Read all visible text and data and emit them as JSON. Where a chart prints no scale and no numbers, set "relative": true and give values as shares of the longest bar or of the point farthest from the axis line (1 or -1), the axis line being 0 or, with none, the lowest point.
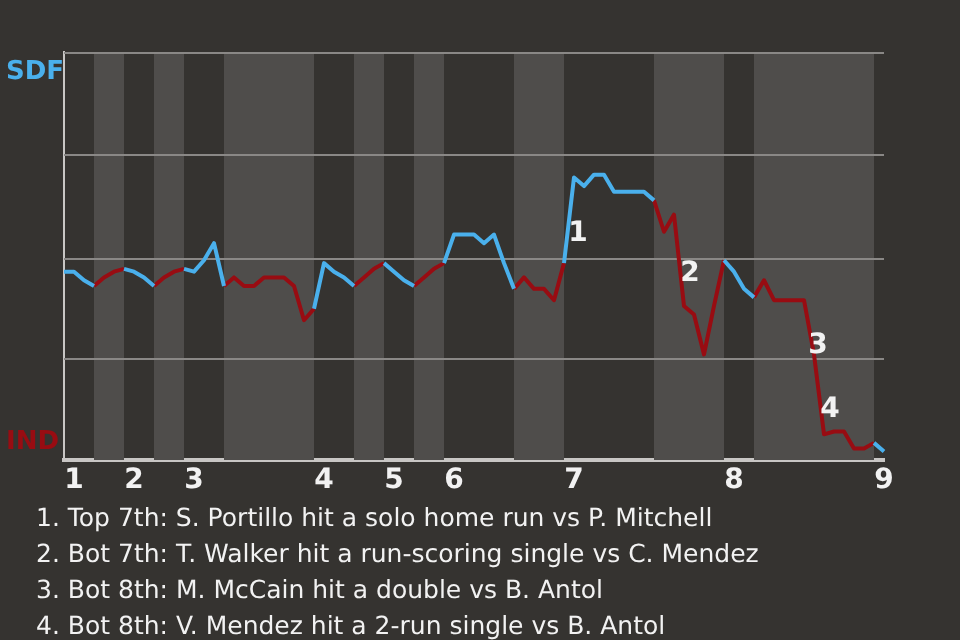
{
  "chart_data": {
    "type": "line",
    "relative": true,
    "categories": [
      null,
      "1",
      null,
      null,
      null,
      null,
      null,
      "2",
      null,
      null,
      null,
      null,
      null,
      "3",
      null,
      null,
      null,
      null,
      null,
      null,
      null,
      null,
      null,
      null,
      null,
      null,
      "4",
      null,
      null,
      null,
      null,
      null,
      null,
      "5",
      null,
      null,
      null,
      null,
      null,
      "6",
      null,
      null,
      null,
      null,
      null,
      null,
      null,
      null,
      null,
      null,
      null,
      "7",
      null,
      null,
      null,
      null,
      null,
      null,
      null,
      null,
      null,
      null,
      null,
      null,
      null,
      null,
      null,
      "8",
      null,
      null,
      null,
      null,
      null,
      null,
      null,
      null,
      null,
      null,
      null,
      null,
      null,
      null,
      "9"
    ],
    "series": [
      {
        "color": "#4ab0ec",
        "values": [
          0.66,
          0.66,
          0.63,
          0.61,
          null,
          null,
          0.67,
          0.66,
          0.64,
          0.61,
          null,
          null,
          0.67,
          0.66,
          0.7,
          0.76,
          0.61,
          null,
          null,
          null,
          null,
          null,
          null,
          null,
          null,
          0.53,
          0.69,
          0.66,
          0.64,
          0.61,
          null,
          null,
          0.69,
          0.66,
          0.63,
          0.61,
          null,
          null,
          0.69,
          0.79,
          0.79,
          0.79,
          0.76,
          0.79,
          0.69,
          0.6,
          null,
          null,
          null,
          null,
          0.69,
          0.99,
          0.96,
          1,
          1,
          0.94,
          0.94,
          0.94,
          0.94,
          0.91,
          null,
          null,
          null,
          null,
          null,
          null,
          0.7,
          0.66,
          0.6,
          0.57,
          null,
          null,
          null,
          null,
          null,
          null,
          null,
          null,
          null,
          null,
          null,
          0.06,
          0.03
        ]
      },
      {
        "color": "#980c12",
        "values": [
          null,
          null,
          null,
          0.61,
          0.64,
          0.66,
          0.67,
          null,
          null,
          0.61,
          0.64,
          0.66,
          0.67,
          null,
          null,
          null,
          0.61,
          0.64,
          0.61,
          0.61,
          0.64,
          0.64,
          0.64,
          0.61,
          0.49,
          0.53,
          null,
          null,
          null,
          0.61,
          0.64,
          0.67,
          0.69,
          null,
          null,
          0.61,
          0.64,
          0.67,
          0.69,
          null,
          null,
          null,
          null,
          null,
          null,
          0.6,
          0.64,
          0.6,
          0.6,
          0.56,
          0.69,
          null,
          null,
          null,
          null,
          null,
          null,
          null,
          null,
          0.91,
          0.8,
          0.86,
          0.54,
          0.51,
          0.37,
          0.54,
          0.7,
          null,
          null,
          0.57,
          0.63,
          0.56,
          0.56,
          0.56,
          0.56,
          0.37,
          0.09,
          0.1,
          0.1,
          0.04,
          0.04,
          0.06,
          null
        ]
      }
    ],
    "ref_lines": [
      {
        "axis": "y",
        "value": 0.36,
        "color": "#8a8886"
      },
      {
        "axis": "y",
        "value": 0.71,
        "color": "#8a8886"
      },
      {
        "axis": "y",
        "value": 1.07,
        "color": "#8a8886"
      },
      {
        "axis": "y",
        "value": 1.43,
        "color": "#8a8886"
      }
    ],
    "annotations": [
      "SDF",
      "IND",
      "1",
      "2",
      "3",
      "4",
      "1. Top 7th: S. Portillo hit a solo home run vs P. Mitchell",
      "2. Bot 7th: T. Walker hit a run-scoring single vs C. Mendez",
      "3. Bot 8th: M. McCain hit a double vs B. Antol",
      "4. Bot 8th: V. Mendez hit a 2-run single vs B. Antol"
    ],
    "legend": false
  }
}
